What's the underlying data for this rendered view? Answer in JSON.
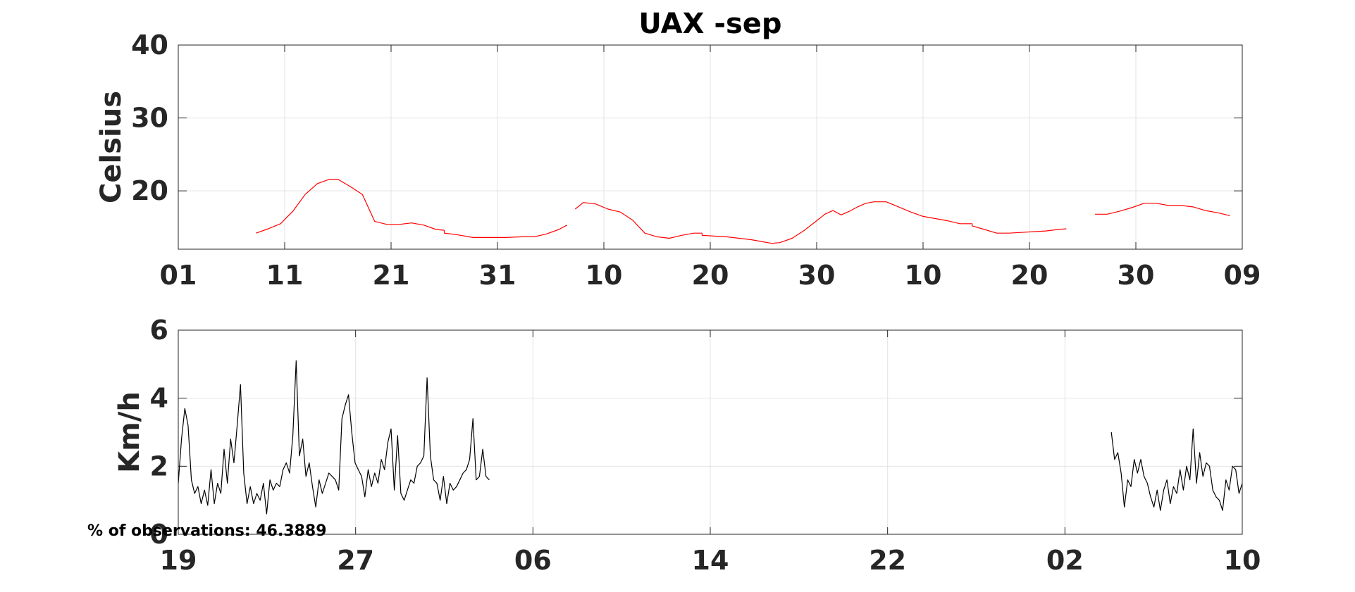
{
  "chart_data": [
    {
      "type": "line",
      "title": "UAX -sep",
      "xlabel": "",
      "ylabel": "Celsius",
      "ylim": [
        12,
        40
      ],
      "yticks": [
        "40",
        "30",
        "20"
      ],
      "xticks": [
        "01",
        "11",
        "21",
        "31",
        "10",
        "20",
        "30",
        "10",
        "20",
        "30",
        "09"
      ],
      "grid": true,
      "color": "#ff0000",
      "series": [
        {
          "segments": [
            [
              [
                9.5,
                14.2
              ],
              [
                11,
                14.8
              ],
              [
                12.5,
                15.5
              ],
              [
                14,
                17.2
              ],
              [
                15.5,
                19.5
              ],
              [
                17,
                21
              ],
              [
                18.5,
                21.6
              ],
              [
                19.5,
                21.6
              ],
              [
                21,
                20.6
              ],
              [
                22.5,
                19.5
              ],
              [
                24,
                15.8
              ],
              [
                25.5,
                15.4
              ],
              [
                27,
                15.4
              ],
              [
                28.5,
                15.6
              ],
              [
                30,
                15.3
              ],
              [
                31.5,
                14.7
              ],
              [
                32.5,
                14.6
              ],
              [
                32.5,
                14.2
              ],
              [
                34,
                14
              ],
              [
                36,
                13.6
              ],
              [
                38,
                13.6
              ],
              [
                40,
                13.6
              ],
              [
                42,
                13.7
              ],
              [
                43.5,
                13.7
              ],
              [
                45,
                14.1
              ],
              [
                46.5,
                14.7
              ],
              [
                47.5,
                15.3
              ]
            ],
            [
              [
                48.5,
                17.5
              ],
              [
                49.5,
                18.4
              ],
              [
                51,
                18.2
              ],
              [
                52.5,
                17.5
              ],
              [
                54,
                17.1
              ],
              [
                55.5,
                16
              ],
              [
                57,
                14.2
              ],
              [
                58.5,
                13.7
              ],
              [
                60,
                13.5
              ],
              [
                61.5,
                13.9
              ],
              [
                63,
                14.2
              ],
              [
                64,
                14.2
              ],
              [
                64,
                13.9
              ],
              [
                65.5,
                13.8
              ],
              [
                67,
                13.7
              ],
              [
                68.5,
                13.5
              ],
              [
                70,
                13.3
              ],
              [
                71.5,
                13
              ],
              [
                72.5,
                12.8
              ],
              [
                73.5,
                12.9
              ],
              [
                75,
                13.5
              ],
              [
                76.5,
                14.6
              ],
              [
                78,
                15.9
              ],
              [
                79,
                16.8
              ],
              [
                80,
                17.3
              ],
              [
                81,
                16.7
              ],
              [
                82,
                17.2
              ],
              [
                83,
                17.8
              ],
              [
                84,
                18.3
              ],
              [
                85,
                18.5
              ],
              [
                86.5,
                18.5
              ],
              [
                88,
                17.8
              ],
              [
                89.5,
                17.1
              ],
              [
                91,
                16.5
              ],
              [
                92.5,
                16.2
              ],
              [
                94,
                15.9
              ],
              [
                95.5,
                15.5
              ],
              [
                97,
                15.5
              ],
              [
                97,
                15.2
              ],
              [
                98.5,
                14.7
              ],
              [
                100,
                14.2
              ],
              [
                101.5,
                14.2
              ],
              [
                103,
                14.3
              ],
              [
                104.5,
                14.4
              ],
              [
                106,
                14.5
              ],
              [
                107.5,
                14.7
              ],
              [
                108.5,
                14.8
              ]
            ],
            [
              [
                112,
                16.8
              ],
              [
                113.5,
                16.8
              ],
              [
                115,
                17.2
              ],
              [
                116.5,
                17.7
              ],
              [
                118,
                18.3
              ],
              [
                119.5,
                18.3
              ],
              [
                121,
                18
              ],
              [
                122.5,
                18
              ],
              [
                124,
                17.8
              ],
              [
                125.5,
                17.3
              ],
              [
                127,
                17
              ],
              [
                128.5,
                16.6
              ]
            ]
          ]
        }
      ]
    },
    {
      "type": "line",
      "title": "",
      "xlabel": "",
      "ylabel": "Km/h",
      "ylim": [
        0,
        6
      ],
      "yticks": [
        "6",
        "4",
        "2",
        "0"
      ],
      "xticks": [
        "19",
        "27",
        "06",
        "14",
        "22",
        "02",
        "10"
      ],
      "grid": true,
      "color": "#000000",
      "series": [
        {
          "segments": [
            [
              [
                0,
                1.5
              ],
              [
                0.2,
                2.8
              ],
              [
                0.4,
                3.7
              ],
              [
                0.6,
                3.2
              ],
              [
                0.8,
                1.6
              ],
              [
                1,
                1.2
              ],
              [
                1.2,
                1.4
              ],
              [
                1.4,
                0.9
              ],
              [
                1.6,
                1.3
              ],
              [
                1.8,
                0.85
              ],
              [
                2,
                1.9
              ],
              [
                2.2,
                0.9
              ],
              [
                2.4,
                1.5
              ],
              [
                2.6,
                1.2
              ],
              [
                2.8,
                2.5
              ],
              [
                3,
                1.5
              ],
              [
                3.2,
                2.8
              ],
              [
                3.4,
                2.1
              ],
              [
                3.6,
                3.2
              ],
              [
                3.8,
                4.4
              ],
              [
                4,
                1.8
              ],
              [
                4.2,
                0.9
              ],
              [
                4.4,
                1.4
              ],
              [
                4.6,
                0.9
              ],
              [
                4.8,
                1.2
              ],
              [
                5,
                1
              ],
              [
                5.2,
                1.5
              ],
              [
                5.4,
                0.6
              ],
              [
                5.6,
                1.6
              ],
              [
                5.8,
                1.3
              ],
              [
                6,
                1.5
              ],
              [
                6.2,
                1.4
              ],
              [
                6.4,
                1.9
              ],
              [
                6.6,
                2.1
              ],
              [
                6.8,
                1.8
              ],
              [
                7,
                2.9
              ],
              [
                7.2,
                5.1
              ],
              [
                7.4,
                2.3
              ],
              [
                7.6,
                2.8
              ],
              [
                7.8,
                1.7
              ],
              [
                8,
                2.1
              ],
              [
                8.2,
                1.4
              ],
              [
                8.4,
                0.8
              ],
              [
                8.6,
                1.6
              ],
              [
                8.8,
                1.2
              ],
              [
                9,
                1.5
              ],
              [
                9.2,
                1.8
              ],
              [
                9.4,
                1.7
              ],
              [
                9.6,
                1.6
              ],
              [
                9.8,
                1.3
              ],
              [
                10,
                3.4
              ],
              [
                10.2,
                3.8
              ],
              [
                10.4,
                4.1
              ],
              [
                10.6,
                3
              ],
              [
                10.8,
                2.1
              ],
              [
                11,
                1.9
              ],
              [
                11.2,
                1.7
              ],
              [
                11.4,
                1.1
              ],
              [
                11.6,
                1.9
              ],
              [
                11.8,
                1.4
              ],
              [
                12,
                1.8
              ],
              [
                12.2,
                1.5
              ],
              [
                12.4,
                2.2
              ],
              [
                12.6,
                1.9
              ],
              [
                12.8,
                2.7
              ],
              [
                13,
                3.1
              ],
              [
                13.2,
                1.3
              ],
              [
                13.4,
                2.9
              ],
              [
                13.6,
                1.2
              ],
              [
                13.8,
                1
              ],
              [
                14,
                1.3
              ],
              [
                14.2,
                1.6
              ],
              [
                14.4,
                1.5
              ],
              [
                14.6,
                2
              ],
              [
                14.8,
                2.1
              ],
              [
                15,
                2.3
              ],
              [
                15.2,
                4.6
              ],
              [
                15.4,
                2.3
              ],
              [
                15.6,
                1.6
              ],
              [
                15.8,
                1.5
              ],
              [
                16,
                1
              ],
              [
                16.2,
                1.7
              ],
              [
                16.4,
                0.9
              ],
              [
                16.6,
                1.5
              ],
              [
                16.8,
                1.3
              ],
              [
                17,
                1.4
              ],
              [
                17.2,
                1.6
              ],
              [
                17.4,
                1.8
              ],
              [
                17.6,
                1.9
              ],
              [
                17.8,
                2.2
              ],
              [
                18,
                3.4
              ],
              [
                18.2,
                1.6
              ],
              [
                18.4,
                1.7
              ],
              [
                18.6,
                2.5
              ],
              [
                18.8,
                1.7
              ],
              [
                19,
                1.6
              ]
            ],
            [
              [
                57,
                3
              ],
              [
                57.2,
                2.2
              ],
              [
                57.4,
                2.4
              ],
              [
                57.6,
                1.8
              ],
              [
                57.8,
                0.8
              ],
              [
                58,
                1.6
              ],
              [
                58.2,
                1.4
              ],
              [
                58.4,
                2.2
              ],
              [
                58.6,
                1.8
              ],
              [
                58.8,
                2.2
              ],
              [
                59,
                1.7
              ],
              [
                59.2,
                1.5
              ],
              [
                59.4,
                1.1
              ],
              [
                59.6,
                0.8
              ],
              [
                59.8,
                1.3
              ],
              [
                60,
                0.7
              ],
              [
                60.2,
                1.3
              ],
              [
                60.4,
                1.6
              ],
              [
                60.6,
                0.9
              ],
              [
                60.8,
                1.4
              ],
              [
                61,
                1.2
              ],
              [
                61.2,
                1.9
              ],
              [
                61.4,
                1.3
              ],
              [
                61.6,
                2
              ],
              [
                61.8,
                1.6
              ],
              [
                62,
                3.1
              ],
              [
                62.2,
                1.5
              ],
              [
                62.4,
                2.4
              ],
              [
                62.6,
                1.7
              ],
              [
                62.8,
                2.1
              ],
              [
                63,
                2
              ],
              [
                63.2,
                1.3
              ],
              [
                63.4,
                1.1
              ],
              [
                63.6,
                1
              ],
              [
                63.8,
                0.7
              ],
              [
                64,
                1.6
              ],
              [
                64.2,
                1.3
              ],
              [
                64.4,
                2
              ],
              [
                64.6,
                1.9
              ],
              [
                64.8,
                1.2
              ],
              [
                65,
                1.5
              ]
            ]
          ]
        }
      ]
    }
  ],
  "note": "% of observations: 46.3889"
}
